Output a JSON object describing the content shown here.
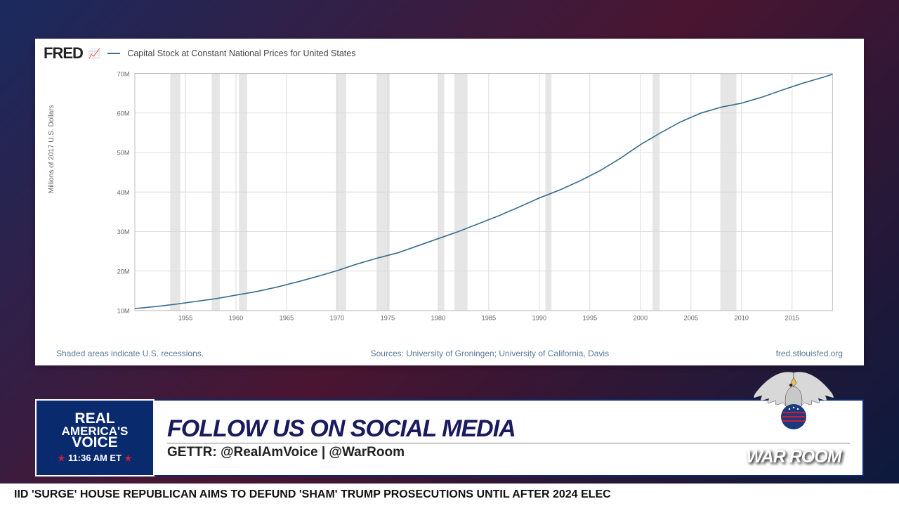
{
  "chart": {
    "type": "line",
    "fred_logo": "FRED",
    "legend": "Capital Stock at Constant National Prices for United States",
    "y_label": "Millions of 2017 U.S. Dollars",
    "y_ticks": [
      10,
      20,
      30,
      40,
      50,
      60,
      70
    ],
    "y_tick_labels": [
      "10M",
      "20M",
      "30M",
      "40M",
      "50M",
      "60M",
      "70M"
    ],
    "ylim": [
      10,
      70
    ],
    "x_ticks": [
      1955,
      1960,
      1965,
      1970,
      1975,
      1980,
      1985,
      1990,
      1995,
      2000,
      2005,
      2010,
      2015
    ],
    "xlim": [
      1950,
      2019
    ],
    "line_color": "#3b6e8f",
    "grid_color": "#d9d9d9",
    "recession_color": "#e6e6e6",
    "background_color": "#ffffff",
    "line_width": 1.8,
    "recessions": [
      [
        1953.5,
        1954.5
      ],
      [
        1957.6,
        1958.4
      ],
      [
        1960.3,
        1961.1
      ],
      [
        1969.9,
        1970.9
      ],
      [
        1973.9,
        1975.2
      ],
      [
        1980.0,
        1980.6
      ],
      [
        1981.6,
        1982.9
      ],
      [
        1990.6,
        1991.2
      ],
      [
        2001.2,
        2001.9
      ],
      [
        2007.9,
        2009.5
      ]
    ],
    "series": [
      [
        1950,
        10.5
      ],
      [
        1952,
        11.0
      ],
      [
        1954,
        11.6
      ],
      [
        1956,
        12.3
      ],
      [
        1958,
        13.0
      ],
      [
        1960,
        13.9
      ],
      [
        1962,
        14.8
      ],
      [
        1964,
        15.9
      ],
      [
        1966,
        17.2
      ],
      [
        1968,
        18.6
      ],
      [
        1970,
        20.1
      ],
      [
        1972,
        21.8
      ],
      [
        1974,
        23.3
      ],
      [
        1976,
        24.6
      ],
      [
        1978,
        26.4
      ],
      [
        1980,
        28.2
      ],
      [
        1982,
        30.0
      ],
      [
        1984,
        32.0
      ],
      [
        1986,
        34.0
      ],
      [
        1988,
        36.2
      ],
      [
        1990,
        38.5
      ],
      [
        1992,
        40.5
      ],
      [
        1994,
        42.8
      ],
      [
        1996,
        45.4
      ],
      [
        1998,
        48.5
      ],
      [
        2000,
        52.0
      ],
      [
        2002,
        55.0
      ],
      [
        2004,
        57.8
      ],
      [
        2006,
        60.0
      ],
      [
        2008,
        61.5
      ],
      [
        2010,
        62.5
      ],
      [
        2012,
        64.0
      ],
      [
        2014,
        65.8
      ],
      [
        2016,
        67.5
      ],
      [
        2018,
        69.0
      ],
      [
        2019,
        69.8
      ]
    ],
    "footer_left": "Shaded areas indicate U.S. recessions.",
    "footer_center": "Sources: University of Groningen; University of California, Davis",
    "footer_right": "fred.stlouisfed.org"
  },
  "lower": {
    "rav_l1": "REAL",
    "rav_l2": "AMERICA'S",
    "rav_l3": "VOICE",
    "time": "11:36 AM ET",
    "headline": "FOLLOW US ON SOCIAL MEDIA",
    "subline": "GETTR: @RealAmVoice | @WarRoom",
    "warroom": "WAR ROOM"
  },
  "ticker": "IID 'SURGE'        HOUSE REPUBLICAN AIMS TO DEFUND 'SHAM' TRUMP PROSECUTIONS UNTIL AFTER 2024 ELEC"
}
